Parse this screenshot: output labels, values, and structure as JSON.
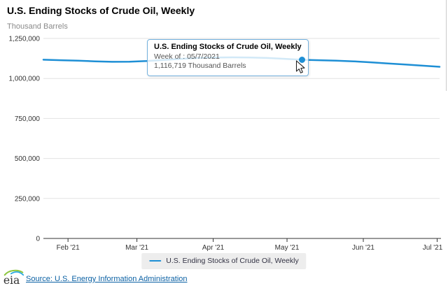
{
  "header": {
    "title": "U.S. Ending Stocks of Crude Oil, Weekly",
    "subtitle": "Thousand Barrels"
  },
  "tooltip": {
    "title": "U.S. Ending Stocks of Crude Oil, Weekly",
    "week_label": "Week of : 05/7/2021",
    "value_label": "1,116,719 Thousand Barrels"
  },
  "legend": {
    "label": "U.S. Ending Stocks of Crude Oil, Weekly"
  },
  "footer": {
    "logo_text": "eia",
    "source_link": "Source: U.S. Energy Information Administration"
  },
  "colors": {
    "series": "#1e8fd5",
    "tooltip_border": "#74b1dd",
    "link": "#0b61a4",
    "grid": "#e2e2e2",
    "axis": "#333333",
    "legend_bg": "#ededed",
    "logo_green": "#8cc63e",
    "logo_blue": "#29a8e0"
  },
  "chart_data": {
    "type": "line",
    "title": "U.S. Ending Stocks of Crude Oil, Weekly",
    "xlabel": "",
    "ylabel": "Thousand Barrels",
    "ylim": [
      0,
      1250000
    ],
    "yticks": [
      0,
      250000,
      500000,
      750000,
      1000000,
      1250000
    ],
    "grid": "horizontal",
    "legend_position": "bottom",
    "x_ticks": [
      {
        "label": "Feb '21",
        "date": "2021-02-01"
      },
      {
        "label": "Mar '21",
        "date": "2021-03-01"
      },
      {
        "label": "Apr '21",
        "date": "2021-04-01"
      },
      {
        "label": "May '21",
        "date": "2021-05-01"
      },
      {
        "label": "Jun '21",
        "date": "2021-06-01"
      },
      {
        "label": "Jul '21",
        "date": "2021-07-01"
      }
    ],
    "series": [
      {
        "name": "U.S. Ending Stocks of Crude Oil, Weekly",
        "x": [
          "2021-01-22",
          "2021-01-29",
          "2021-02-05",
          "2021-02-12",
          "2021-02-19",
          "2021-02-26",
          "2021-03-05",
          "2021-03-12",
          "2021-03-19",
          "2021-03-26",
          "2021-04-02",
          "2021-04-09",
          "2021-04-16",
          "2021-04-23",
          "2021-04-30",
          "2021-05-07",
          "2021-05-14",
          "2021-05-21",
          "2021-05-28",
          "2021-06-04",
          "2021-06-11",
          "2021-06-18",
          "2021-06-25",
          "2021-07-02"
        ],
        "values": [
          1117000,
          1114000,
          1111000,
          1107000,
          1104000,
          1105000,
          1109000,
          1116000,
          1123000,
          1128000,
          1131000,
          1132000,
          1131000,
          1128000,
          1123000,
          1116719,
          1114000,
          1111000,
          1107000,
          1101000,
          1094000,
          1087000,
          1080000,
          1073000
        ]
      }
    ],
    "highlight": {
      "date": "2021-05-07",
      "value": 1116719
    }
  }
}
